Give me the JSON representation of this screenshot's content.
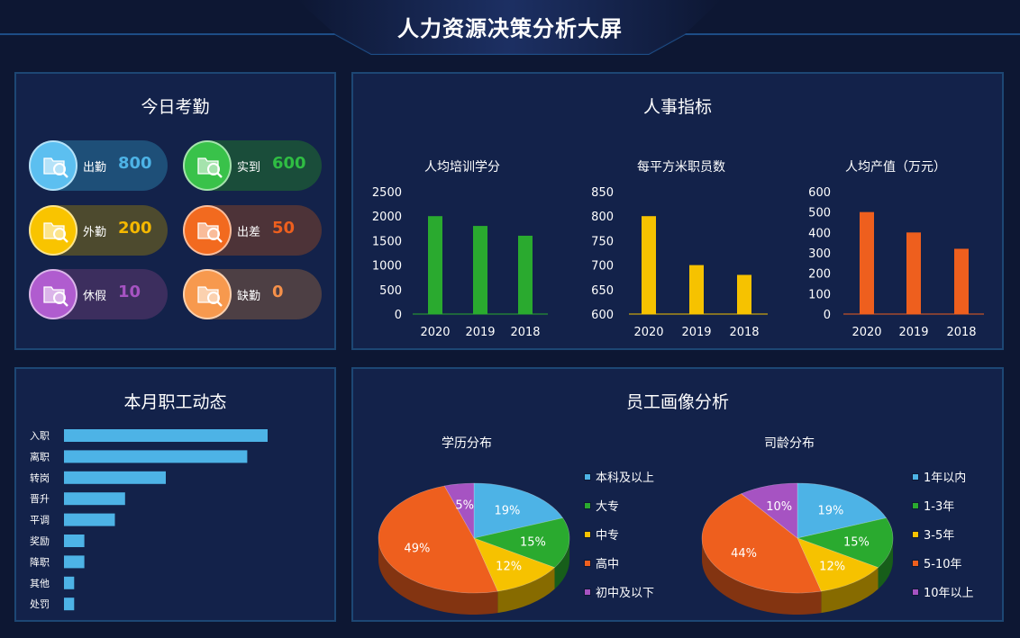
{
  "title": "人力资源决策分析大屏",
  "attendance": {
    "title": "今日考勤",
    "items": [
      {
        "label": "出勤",
        "value": "800",
        "color": "#4db3e6",
        "bg": "#1e4f78",
        "circle": "#5cbff0"
      },
      {
        "label": "实到",
        "value": "600",
        "color": "#2fbd43",
        "bg": "#1a4d3a",
        "circle": "#39c24a"
      },
      {
        "label": "外勤",
        "value": "200",
        "color": "#f5b800",
        "bg": "#4d4a2e",
        "circle": "#f9c400"
      },
      {
        "label": "出差",
        "value": "50",
        "color": "#ee5f1e",
        "bg": "#4d3338",
        "circle": "#f26a1f"
      },
      {
        "label": "休假",
        "value": "10",
        "color": "#a653c2",
        "bg": "#3c2e5e",
        "circle": "#b05ccf"
      },
      {
        "label": "缺勤",
        "value": "0",
        "color": "#f5904a",
        "bg": "#4d3f44",
        "circle": "#f7994e"
      }
    ]
  },
  "hr_metrics": {
    "title": "人事指标"
  },
  "monthly": {
    "title": "本月职工动态"
  },
  "portrait": {
    "title": "员工画像分析"
  },
  "chart_data": [
    {
      "type": "bar",
      "title": "人均培训学分",
      "categories": [
        "2020",
        "2019",
        "2018"
      ],
      "values": [
        2000,
        1800,
        1600
      ],
      "ylim": [
        0,
        2500
      ],
      "yticks": [
        "0",
        "500",
        "1000",
        "1500",
        "2000",
        "2500"
      ],
      "color": "#2aaa2f"
    },
    {
      "type": "bar",
      "title": "每平方米职员数",
      "categories": [
        "2020",
        "2019",
        "2018"
      ],
      "values": [
        800,
        700,
        680
      ],
      "ylim": [
        600,
        850
      ],
      "yticks": [
        "600",
        "650",
        "700",
        "750",
        "800",
        "850"
      ],
      "color": "#f6c200"
    },
    {
      "type": "bar",
      "title": "人均产值（万元）",
      "categories": [
        "2020",
        "2019",
        "2018"
      ],
      "values": [
        500,
        400,
        320
      ],
      "ylim": [
        0,
        600
      ],
      "yticks": [
        "0",
        "100",
        "200",
        "300",
        "400",
        "500",
        "600"
      ],
      "color": "#ee5f1e"
    },
    {
      "type": "bar",
      "orientation": "horizontal",
      "categories": [
        "入职",
        "离职",
        "转岗",
        "晋升",
        "平调",
        "奖励",
        "降职",
        "其他",
        "处罚"
      ],
      "values": [
        100,
        90,
        50,
        30,
        25,
        10,
        10,
        5,
        5
      ],
      "color": "#4db3e6"
    },
    {
      "type": "pie",
      "title": "学历分布",
      "labels": [
        "本科及以上",
        "大专",
        "中专",
        "高中",
        "初中及以下"
      ],
      "values": [
        19,
        15,
        12,
        49,
        5
      ],
      "value_labels": [
        "19%",
        "15%",
        "12%",
        "49%",
        "5%"
      ],
      "colors": [
        "#4db3e6",
        "#2aaa2f",
        "#f6c200",
        "#ee5f1e",
        "#a653c2"
      ]
    },
    {
      "type": "pie",
      "title": "司龄分布",
      "labels": [
        "1年以内",
        "1-3年",
        "3-5年",
        "5-10年",
        "10年以上"
      ],
      "values": [
        19,
        15,
        12,
        44,
        10
      ],
      "value_labels": [
        "19%",
        "15%",
        "12%",
        "44%",
        "10%"
      ],
      "colors": [
        "#4db3e6",
        "#2aaa2f",
        "#f6c200",
        "#ee5f1e",
        "#a653c2"
      ]
    }
  ]
}
